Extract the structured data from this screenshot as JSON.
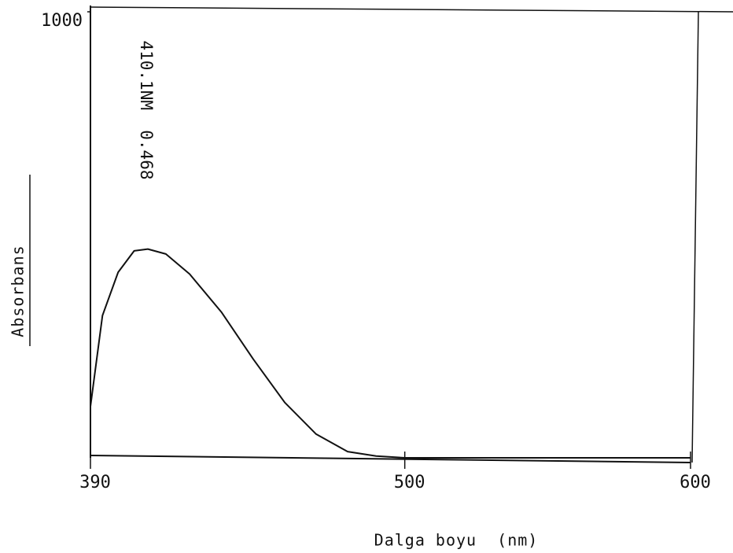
{
  "chart_data": {
    "type": "line",
    "annotation": "410.1NM  0.468",
    "xlabel": "Dalga boyu  (nm)",
    "ylabel": "Absorbans",
    "x": [
      390,
      394.2,
      399.7,
      405.3,
      410.1,
      416.4,
      424.7,
      435.8,
      447,
      458,
      469,
      480,
      490,
      500,
      550,
      600
    ],
    "values": [
      115,
      319,
      416,
      464,
      468,
      457,
      412,
      327,
      221,
      124,
      53,
      14,
      4,
      0,
      0,
      0
    ],
    "color": "#111111",
    "xlim": [
      390,
      600
    ],
    "xticks": [
      390,
      500,
      600
    ],
    "ylim": [
      0,
      1000
    ],
    "yticks": [
      1000
    ],
    "grid": false
  }
}
